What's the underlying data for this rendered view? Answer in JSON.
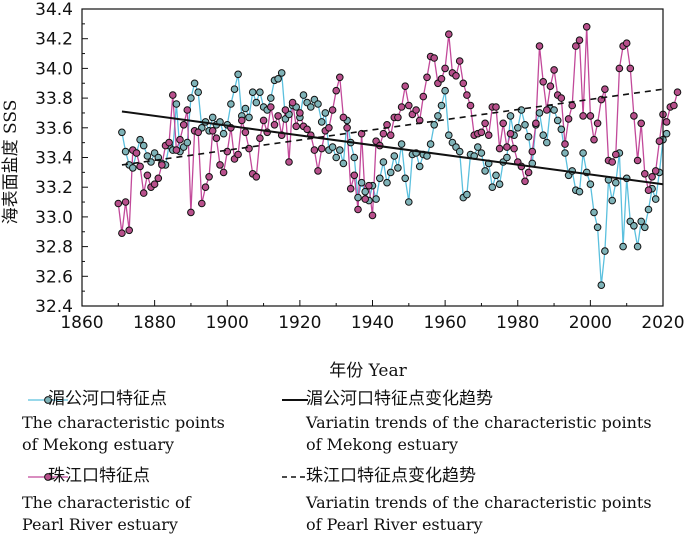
{
  "chart_data": {
    "type": "line",
    "xlabel": "年份 Year",
    "ylabel": "海表面盐度 SSS",
    "xlim": [
      1860,
      2020
    ],
    "ylim": [
      32.4,
      34.4
    ],
    "xticks": [
      "1860",
      "1880",
      "1900",
      "1920",
      "1940",
      "1960",
      "1980",
      "2000",
      "2020"
    ],
    "yticks": [
      "32.4",
      "32.6",
      "32.8",
      "33.0",
      "33.2",
      "33.4",
      "33.6",
      "33.8",
      "34.0",
      "34.2",
      "34.4"
    ],
    "grid": false,
    "legend_position": "bottom",
    "series": [
      {
        "name": "湄公河口特征点 The characteristic points of Mekong estuary",
        "color": "#5bc0de",
        "marker_fill": "#7fb3b8",
        "x_start": 1871,
        "values": [
          33.57,
          33.44,
          33.35,
          33.33,
          33.43,
          33.52,
          33.48,
          33.41,
          33.37,
          33.43,
          33.4,
          33.36,
          33.35,
          33.48,
          33.45,
          33.76,
          33.44,
          33.47,
          33.5,
          33.8,
          33.9,
          33.84,
          33.6,
          33.64,
          33.58,
          33.67,
          33.62,
          33.64,
          33.56,
          33.62,
          33.76,
          33.86,
          33.96,
          33.68,
          33.73,
          33.67,
          33.84,
          33.77,
          33.84,
          33.74,
          33.72,
          33.8,
          33.92,
          33.93,
          33.97,
          33.66,
          33.69,
          33.75,
          33.74,
          33.67,
          33.82,
          33.77,
          33.74,
          33.79,
          33.76,
          33.64,
          33.7,
          33.45,
          33.47,
          33.4,
          33.45,
          33.36,
          33.65,
          33.5,
          33.4,
          33.13,
          33.23,
          33.17,
          33.11,
          33.21,
          33.12,
          33.26,
          33.37,
          33.23,
          33.3,
          33.41,
          33.33,
          33.49,
          33.26,
          33.1,
          33.42,
          33.43,
          33.34,
          33.42,
          33.41,
          33.49,
          33.62,
          33.68,
          33.75,
          33.85,
          33.55,
          33.5,
          33.47,
          33.44,
          33.13,
          33.15,
          33.42,
          33.41,
          33.47,
          33.43,
          33.31,
          33.36,
          33.2,
          33.28,
          33.22,
          33.37,
          33.4,
          33.68,
          33.55,
          33.6,
          33.72,
          33.62,
          33.54,
          33.36,
          33.62,
          33.7,
          33.55,
          33.5,
          33.73,
          33.72,
          33.65,
          33.59,
          33.43,
          33.28,
          33.31,
          33.18,
          33.17,
          33.43,
          33.3,
          33.22,
          33.03,
          32.93,
          32.54,
          32.77,
          33.25,
          33.11,
          33.23,
          33.43,
          32.8,
          33.26,
          32.97,
          32.94,
          32.8,
          32.97,
          32.93,
          33.05,
          33.19,
          33.12,
          33.3,
          33.52,
          33.56
        ]
      },
      {
        "name": "珠江口特征点 The characteristic of Pearl River estuary",
        "color": "#c2499a",
        "marker_fill": "#b8508c",
        "x_start": 1870,
        "values": [
          33.09,
          32.89,
          33.1,
          32.91,
          33.45,
          33.43,
          33.34,
          33.16,
          33.28,
          33.2,
          33.22,
          33.26,
          33.35,
          33.48,
          33.5,
          33.82,
          33.45,
          33.52,
          33.62,
          33.72,
          33.03,
          33.58,
          33.57,
          33.09,
          33.2,
          33.27,
          33.58,
          33.53,
          33.35,
          33.3,
          33.44,
          33.6,
          33.39,
          33.42,
          33.65,
          33.57,
          33.46,
          33.29,
          33.27,
          33.53,
          33.65,
          33.57,
          33.74,
          33.62,
          33.68,
          33.55,
          33.72,
          33.37,
          33.77,
          33.61,
          33.7,
          33.61,
          33.59,
          33.55,
          33.45,
          33.31,
          33.46,
          33.58,
          33.6,
          33.72,
          33.85,
          33.94,
          33.67,
          33.6,
          33.19,
          33.28,
          33.05,
          33.56,
          33.12,
          33.21,
          33.01,
          33.51,
          33.48,
          33.56,
          33.62,
          33.55,
          33.67,
          33.67,
          33.74,
          33.88,
          33.75,
          33.69,
          33.72,
          33.65,
          33.81,
          33.94,
          34.08,
          34.07,
          33.9,
          33.93,
          34.0,
          34.23,
          33.97,
          33.95,
          34.05,
          33.9,
          33.82,
          33.75,
          33.55,
          33.56,
          33.57,
          33.63,
          33.55,
          33.74,
          33.74,
          33.46,
          33.63,
          33.47,
          33.56,
          33.46,
          33.37,
          33.34,
          33.24,
          33.3,
          33.44,
          33.63,
          34.15,
          33.91,
          33.72,
          33.88,
          33.99,
          33.82,
          33.8,
          33.49,
          33.66,
          33.75,
          34.15,
          34.19,
          33.68,
          34.28,
          33.68,
          33.52,
          33.63,
          33.79,
          33.86,
          33.38,
          33.37,
          33.42,
          34.0,
          34.15,
          34.17,
          34.0,
          33.68,
          33.38,
          33.63,
          33.29,
          33.18,
          33.27,
          33.31,
          33.51,
          33.69,
          33.64,
          33.74,
          33.75,
          33.84
        ]
      },
      {
        "name": "湄公河口特征点变化趋势 Variatin trends of the characteristic points of Mekong estuary",
        "style": "solid",
        "color": "#111111",
        "x": [
          1871,
          2020
        ],
        "values": [
          33.71,
          33.22
        ]
      },
      {
        "name": "珠江口特征点变化趋势 Variatin trends of the characteristic points of Pearl River estuary",
        "style": "dashed",
        "color": "#111111",
        "x": [
          1871,
          2020
        ],
        "values": [
          33.35,
          33.86
        ]
      }
    ]
  },
  "legend": {
    "mekong_zh": "湄公河口特征点",
    "mekong_en1": "The characteristic points",
    "mekong_en2": "of Mekong estuary",
    "mekong_trend_zh": "湄公河口特征点变化趋势",
    "mekong_trend_en1": "Variatin trends of the characteristic points",
    "mekong_trend_en2": "of Mekong estuary",
    "pearl_zh": "珠江口特征点",
    "pearl_en1": "The characteristic of",
    "pearl_en2": "Pearl River estuary",
    "pearl_trend_zh": "珠江口特征点变化趋势",
    "pearl_trend_en1": "Variatin trends of the characteristic points",
    "pearl_trend_en2": "of Pearl River estuary"
  }
}
